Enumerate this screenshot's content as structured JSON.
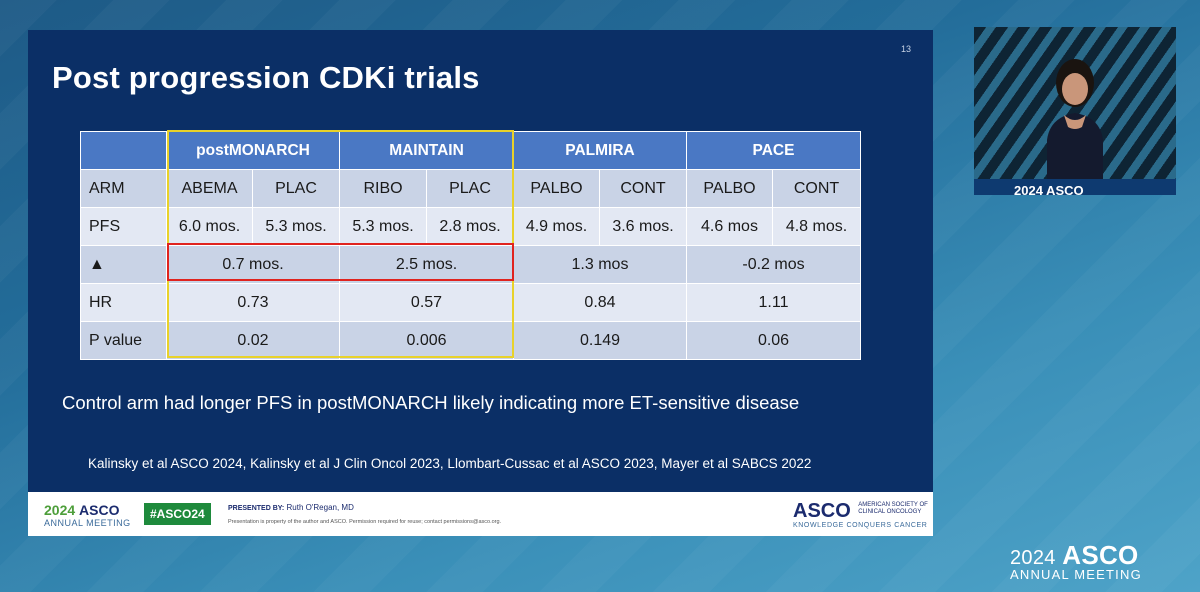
{
  "slide": {
    "number": "13",
    "title": "Post progression CDKi trials",
    "table": {
      "header": [
        "",
        "postMONARCH",
        "MAINTAIN",
        "PALMIRA",
        "PACE"
      ],
      "arm_row": [
        "ARM",
        "ABEMA",
        "PLAC",
        "RIBO",
        "PLAC",
        "PALBO",
        "CONT",
        "PALBO",
        "CONT"
      ],
      "pfs_row": [
        "PFS",
        "6.0 mos.",
        "5.3 mos.",
        "5.3 mos.",
        "2.8 mos.",
        "4.9 mos.",
        "3.6 mos.",
        "4.6 mos",
        "4.8 mos."
      ],
      "delta_row": [
        "▲",
        "0.7 mos.",
        "2.5 mos.",
        "1.3 mos",
        "-0.2 mos"
      ],
      "hr_row": [
        "HR",
        "0.73",
        "0.57",
        "0.84",
        "1.11"
      ],
      "p_row": [
        "P value",
        "0.02",
        "0.006",
        "0.149",
        "0.06"
      ]
    },
    "note": "Control arm had longer PFS in postMONARCH likely indicating more ET-sensitive disease",
    "references": "Kalinsky et al ASCO 2024, Kalinsky et al J Clin Oncol 2023, Llombart-Cussac et al ASCO 2023, Mayer et al SABCS 2022",
    "footer": {
      "logo_year": "2024",
      "logo_brand": "ASCO",
      "logo_sub": "ANNUAL MEETING",
      "hashtag": "#ASCO24",
      "presented_by_label": "PRESENTED BY:",
      "presenter": "Ruth O'Regan, MD",
      "permission": "Presentation is property of the author and ASCO. Permission required for reuse; contact permissions@asco.org.",
      "asco": "ASCO",
      "asco_sub1": "AMERICAN SOCIETY OF",
      "asco_sub2": "CLINICAL ONCOLOGY",
      "tagline": "KNOWLEDGE CONQUERS CANCER"
    }
  },
  "video": {
    "podium_text": "2024 ASCO"
  },
  "corner_logo": {
    "year": "2024",
    "brand": "ASCO",
    "sub": "ANNUAL MEETING"
  },
  "colors": {
    "slide_bg": "#0b2f66",
    "header_blue": "#4a78c4",
    "highlight_yellow": "#e8d22a",
    "highlight_red": "#e0231e",
    "asco_green": "#1e8a3c"
  }
}
